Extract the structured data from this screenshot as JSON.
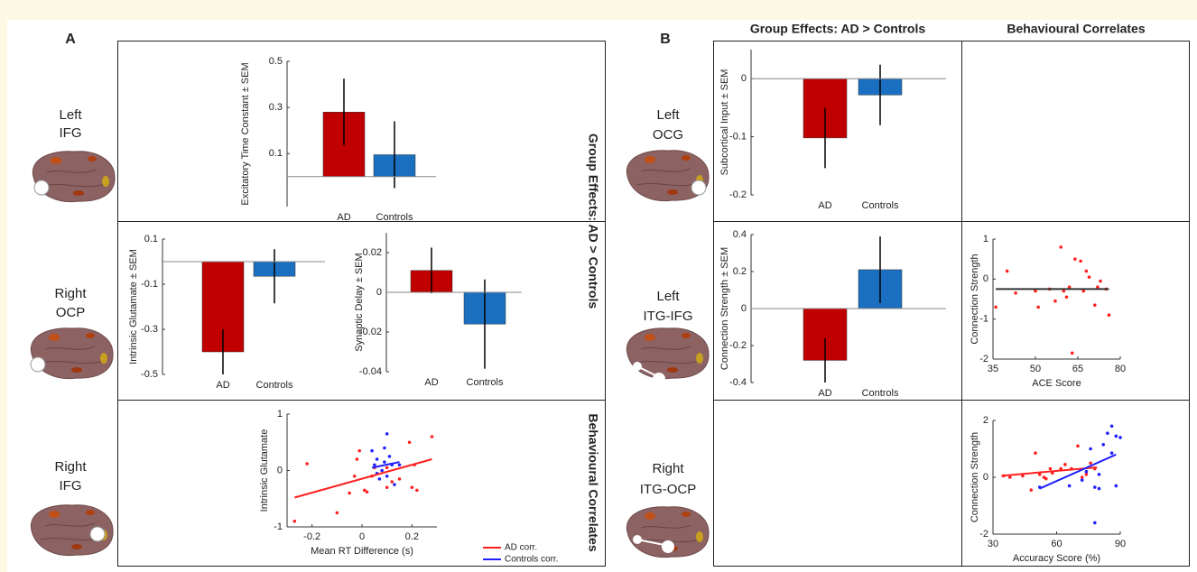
{
  "figure": {
    "panels": [
      "A",
      "B"
    ],
    "regions": [
      [
        "Left",
        "IFG"
      ],
      [
        "Right",
        "OCP"
      ],
      [
        "Right",
        "IFG"
      ],
      [
        "Left",
        "OCG"
      ],
      [
        "Left",
        "ITG-IFG"
      ],
      [
        "Right",
        "ITG-OCP"
      ]
    ],
    "row_headers": [
      "Group Effects: AD > Controls",
      "Behavioural Correlates"
    ],
    "column_headers": [
      "Group Effects: AD > Controls",
      "Behavioural Correlates"
    ]
  },
  "chart_data": [
    {
      "type": "bar",
      "ylabel": "Excitatory Time Constant ± SEM",
      "categories": [
        "AD",
        "Controls"
      ],
      "values": [
        0.28,
        0.095
      ],
      "errors": [
        0.145,
        0.145
      ],
      "colors": [
        "#c00000",
        "#1a6fc0"
      ],
      "ylim": [
        -0.13,
        0.5
      ],
      "yticks": [
        0.1,
        0.3,
        0.5
      ]
    },
    {
      "type": "bar",
      "ylabel": "Intrinsic Glutamate ± SEM",
      "categories": [
        "AD",
        "Controls"
      ],
      "values": [
        -0.4,
        -0.065
      ],
      "errors": [
        0.1,
        0.12
      ],
      "colors": [
        "#c00000",
        "#1a6fc0"
      ],
      "ylim": [
        -0.5,
        0.1
      ],
      "yticks": [
        -0.5,
        -0.3,
        -0.1,
        0.1
      ]
    },
    {
      "type": "bar",
      "ylabel": "Synaptic Delay ± SEM",
      "categories": [
        "AD",
        "Controls"
      ],
      "values": [
        0.011,
        -0.016
      ],
      "errors": [
        0.0115,
        0.0225
      ],
      "colors": [
        "#c00000",
        "#1a6fc0"
      ],
      "ylim": [
        -0.04,
        0.03
      ],
      "yticks": [
        -0.04,
        -0.02,
        0,
        0.02
      ]
    },
    {
      "type": "scatter",
      "xlabel": "Mean RT Difference (s)",
      "ylabel": "Intrinsic Glutamate",
      "xlim": [
        -0.3,
        0.3
      ],
      "ylim": [
        -1,
        1
      ],
      "xticks": [
        -0.2,
        0,
        0.2
      ],
      "yticks": [
        -1,
        0,
        1
      ],
      "legend": "lower right",
      "series": [
        {
          "mode": "markers",
          "color": "#ff2020",
          "x": [
            -0.27,
            -0.22,
            -0.1,
            -0.05,
            -0.03,
            -0.01,
            0.01,
            0.02,
            0.05,
            0.1,
            0.1,
            0.12,
            0.15,
            0.19,
            0.21,
            0.2,
            0.22,
            0.28,
            -0.02,
            0.04
          ],
          "values": [
            -0.9,
            0.12,
            -0.75,
            -0.4,
            -0.1,
            0.35,
            -0.35,
            -0.38,
            0.05,
            0.05,
            -0.3,
            -0.2,
            -0.15,
            0.5,
            0.1,
            -0.3,
            -0.35,
            0.6,
            0.2,
            -0.1
          ]
        },
        {
          "mode": "markers",
          "color": "#2020ff",
          "x": [
            0.04,
            0.06,
            0.05,
            0.08,
            0.09,
            0.1,
            0.11,
            0.12,
            0.07,
            0.13,
            0.06,
            0.1,
            0.15,
            0.09
          ],
          "values": [
            0.35,
            0.2,
            0.1,
            0.0,
            0.4,
            0.65,
            0.25,
            0.1,
            -0.15,
            -0.25,
            -0.05,
            -0.1,
            0.1,
            0.15
          ]
        },
        {
          "mode": "line",
          "name": "AD corr.",
          "color": "#ff2020",
          "x": [
            -0.27,
            0.28
          ],
          "values": [
            -0.48,
            0.2
          ]
        },
        {
          "mode": "line",
          "name": "Controls corr.",
          "color": "#2020ff",
          "x": [
            0.04,
            0.15
          ],
          "values": [
            0.05,
            0.15
          ]
        }
      ]
    },
    {
      "type": "bar",
      "ylabel": "Subcortical Input ± SEM",
      "categories": [
        "AD",
        "Controls"
      ],
      "values": [
        -0.102,
        -0.028
      ],
      "errors": [
        0.052,
        0.052
      ],
      "colors": [
        "#c00000",
        "#1a6fc0"
      ],
      "ylim": [
        -0.2,
        0.05
      ],
      "yticks": [
        -0.2,
        -0.1,
        0
      ]
    },
    {
      "type": "bar",
      "ylabel": "Connection Strength ± SEM",
      "categories": [
        "AD",
        "Controls"
      ],
      "values": [
        -0.28,
        0.21
      ],
      "errors": [
        0.12,
        0.18
      ],
      "colors": [
        "#c00000",
        "#1a6fc0"
      ],
      "ylim": [
        -0.4,
        0.4
      ],
      "yticks": [
        -0.4,
        -0.2,
        0,
        0.2,
        0.4
      ]
    },
    {
      "type": "scatter",
      "xlabel": "ACE Score",
      "ylabel": "Connection Strength",
      "xlim": [
        35,
        80
      ],
      "ylim": [
        -2,
        1
      ],
      "xticks": [
        35,
        50,
        65,
        80
      ],
      "yticks": [
        -2,
        -1,
        0,
        1
      ],
      "series": [
        {
          "mode": "markers",
          "color": "#ff2020",
          "x": [
            36,
            40,
            43,
            50,
            51,
            55,
            57,
            59,
            60,
            61,
            63,
            64,
            66,
            67,
            68,
            69,
            71,
            72,
            73,
            75,
            76,
            62
          ],
          "values": [
            -0.7,
            0.2,
            -0.35,
            -0.3,
            -0.7,
            -0.25,
            -0.55,
            0.8,
            -0.3,
            -0.45,
            -1.85,
            0.5,
            0.45,
            -0.3,
            0.2,
            0.05,
            -0.65,
            -0.2,
            -0.05,
            -0.25,
            -0.9,
            -0.2
          ]
        },
        {
          "mode": "line",
          "color": "#333333",
          "x": [
            36,
            76
          ],
          "values": [
            -0.25,
            -0.25
          ]
        }
      ]
    },
    {
      "type": "scatter",
      "xlabel": "Accuracy Score (%)",
      "ylabel": "Connection Strength",
      "xlim": [
        30,
        90
      ],
      "ylim": [
        -2,
        2
      ],
      "xticks": [
        30,
        60,
        90
      ],
      "yticks": [
        -2,
        0,
        2
      ],
      "series": [
        {
          "mode": "markers",
          "color": "#ff2020",
          "x": [
            35,
            38,
            44,
            48,
            50,
            52,
            54,
            55,
            57,
            58,
            62,
            64,
            67,
            70,
            72,
            74,
            76,
            78
          ],
          "values": [
            0.05,
            0.0,
            0.05,
            -0.45,
            0.85,
            0.1,
            0.0,
            -0.05,
            0.3,
            0.15,
            0.3,
            0.45,
            0.3,
            1.1,
            0.0,
            0.1,
            0.5,
            0.3
          ]
        },
        {
          "mode": "markers",
          "color": "#2020ff",
          "x": [
            52,
            66,
            72,
            74,
            76,
            78,
            80,
            82,
            84,
            86,
            86,
            88,
            88,
            90,
            78,
            80
          ],
          "values": [
            -0.35,
            -0.3,
            -0.1,
            0.2,
            1.0,
            -0.35,
            -0.4,
            1.15,
            1.55,
            0.85,
            1.8,
            1.45,
            -0.3,
            1.4,
            -1.6,
            0.1
          ]
        },
        {
          "mode": "line",
          "color": "#ff2020",
          "x": [
            34,
            79
          ],
          "values": [
            0.05,
            0.35
          ]
        },
        {
          "mode": "line",
          "color": "#2020ff",
          "x": [
            52,
            88
          ],
          "values": [
            -0.4,
            0.8
          ]
        }
      ]
    }
  ]
}
